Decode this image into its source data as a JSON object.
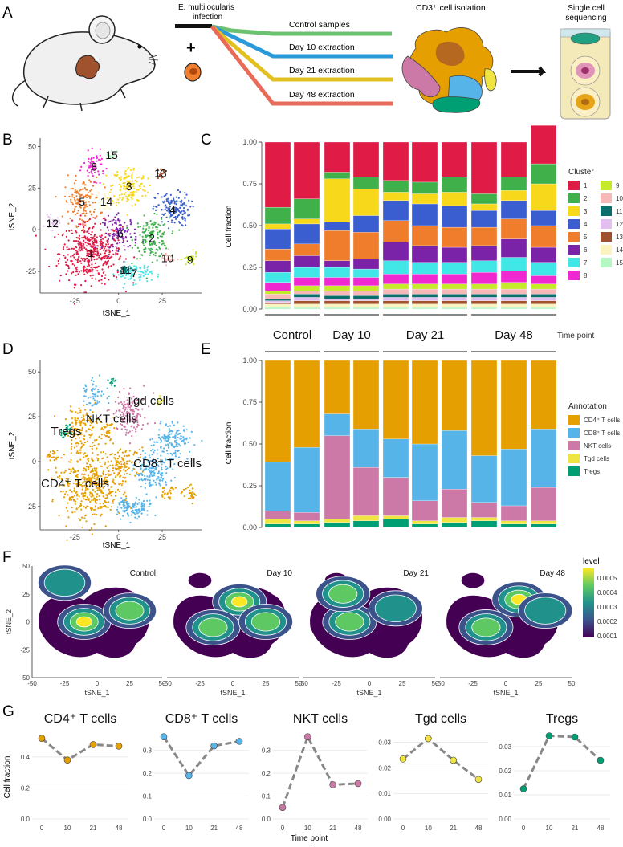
{
  "colors": {
    "c1": "#e01b46",
    "c2": "#3fb04a",
    "c3": "#f7d81a",
    "c4": "#3a5ed0",
    "c5": "#ef7d2c",
    "c6": "#7a23a8",
    "c7": "#41e6e6",
    "c8": "#f028d0",
    "c9": "#c4ea2a",
    "c10": "#f7b8b8",
    "c11": "#0b6e6a",
    "c12": "#e2bfef",
    "c13": "#a0522d",
    "c14": "#fbf3c0",
    "c15": "#b4f7c4",
    "cd4": "#e69f00",
    "cd8": "#56b4e9",
    "nkt": "#cc79a7",
    "tgd": "#f0e442",
    "treg": "#009e73"
  },
  "panel_letters": [
    "A",
    "B",
    "C",
    "D",
    "E",
    "F",
    "G"
  ],
  "panelA": {
    "infection_label": "E. multilocularis\ninfection",
    "plus": "+",
    "lanes": [
      "Control samples",
      "Day 10 extraction",
      "Day 21 extraction",
      "Day 48 extraction"
    ],
    "isolation_label": "CD3⁺ cell isolation",
    "sequencing_label": "Single cell\nsequencing"
  },
  "panelB": {
    "xlabel": "tSNE_1",
    "ylabel": "tSNE_2",
    "xticks": [
      "-25",
      "0",
      "25"
    ],
    "yticks": [
      "50",
      "25",
      "0",
      "-25"
    ],
    "clusters": [
      {
        "id": "1",
        "label": "1",
        "color": "c1",
        "x": -16,
        "y": -14,
        "sx": 9,
        "sy": 9,
        "n": 420
      },
      {
        "id": "2",
        "label": "2",
        "color": "c2",
        "x": 19,
        "y": -5,
        "sx": 5,
        "sy": 6,
        "n": 160
      },
      {
        "id": "3",
        "label": "3",
        "color": "c3",
        "x": 6,
        "y": 26,
        "sx": 5,
        "sy": 6,
        "n": 150
      },
      {
        "id": "4",
        "label": "4",
        "color": "c4",
        "x": 31,
        "y": 12,
        "sx": 5,
        "sy": 5,
        "n": 150
      },
      {
        "id": "5",
        "label": "5",
        "color": "c5",
        "x": -21,
        "y": 17,
        "sx": 5,
        "sy": 7,
        "n": 140
      },
      {
        "id": "6",
        "label": "6",
        "color": "c6",
        "x": 1,
        "y": -2,
        "sx": 5,
        "sy": 5,
        "n": 110
      },
      {
        "id": "7",
        "label": "7",
        "color": "c7",
        "x": 9,
        "y": -26,
        "sx": 5,
        "sy": 3,
        "n": 90
      },
      {
        "id": "8",
        "label": "8",
        "color": "c8",
        "x": -14,
        "y": 38,
        "sx": 3,
        "sy": 4,
        "n": 60
      },
      {
        "id": "9",
        "label": "9",
        "color": "c9",
        "x": 41,
        "y": -18,
        "sx": 2,
        "sy": 2,
        "n": 30
      },
      {
        "id": "10",
        "label": "10",
        "color": "c10",
        "x": 28,
        "y": -17,
        "sx": 2,
        "sy": 2,
        "n": 25
      },
      {
        "id": "11",
        "label": "11",
        "color": "c11",
        "x": 4,
        "y": -24,
        "sx": 2,
        "sy": 1.5,
        "n": 25
      },
      {
        "id": "12",
        "label": "12",
        "color": "c12",
        "x": -38,
        "y": 4,
        "sx": 2,
        "sy": 2,
        "n": 25
      },
      {
        "id": "13",
        "label": "13",
        "color": "c13",
        "x": 24,
        "y": 34,
        "sx": 1.5,
        "sy": 1.5,
        "n": 20
      },
      {
        "id": "14",
        "label": "14",
        "color": "c14",
        "x": -7,
        "y": 17,
        "sx": 3,
        "sy": 3,
        "n": 30
      },
      {
        "id": "15",
        "label": "15",
        "color": "c15",
        "x": -4,
        "y": 45,
        "sx": 1.5,
        "sy": 1.5,
        "n": 15
      }
    ]
  },
  "panelD": {
    "xlabel": "tSNE_1",
    "ylabel": "tSNE_2",
    "xticks": [
      "-25",
      "0",
      "25"
    ],
    "yticks": [
      "50",
      "25",
      "0",
      "-25"
    ],
    "labels": [
      {
        "text": "Tgd cells",
        "x": 18,
        "y": 34
      },
      {
        "text": "NKT cells",
        "x": -4,
        "y": 24
      },
      {
        "text": "Tregs",
        "x": -30,
        "y": 17
      },
      {
        "text": "CD8⁺ T cells",
        "x": 28,
        "y": -1
      },
      {
        "text": "CD4⁺ T cells",
        "x": -25,
        "y": -12
      }
    ]
  },
  "chart_data": [
    {
      "id": "C",
      "type": "bar",
      "stacked": true,
      "ylabel": "Cell fraction",
      "ylim": [
        0,
        1
      ],
      "yticks": [
        "1.00",
        "0.75",
        "0.50",
        "0.25",
        "0.00"
      ],
      "legend_title": "Cluster",
      "legend": [
        "1",
        "2",
        "3",
        "4",
        "5",
        "6",
        "7",
        "8",
        "9",
        "10",
        "11",
        "12",
        "13",
        "14",
        "15"
      ],
      "groups": [
        "Control",
        "Day 10",
        "Day 21",
        "Day 48"
      ],
      "group_sizes": [
        2,
        2,
        3,
        3
      ],
      "group_axis_title": "Time point",
      "series_order_bottom_to_top": [
        "15",
        "14",
        "13",
        "12",
        "11",
        "10",
        "9",
        "8",
        "7",
        "6",
        "5",
        "4",
        "3",
        "2",
        "1"
      ],
      "bars": [
        [
          0.01,
          0.02,
          0.01,
          0.01,
          0.01,
          0.03,
          0.02,
          0.05,
          0.06,
          0.07,
          0.07,
          0.12,
          0.03,
          0.1,
          0.39
        ],
        [
          0.01,
          0.02,
          0.02,
          0.02,
          0.02,
          0.02,
          0.03,
          0.05,
          0.06,
          0.07,
          0.07,
          0.12,
          0.03,
          0.12,
          0.34
        ],
        [
          0.01,
          0.02,
          0.02,
          0.01,
          0.02,
          0.03,
          0.03,
          0.05,
          0.06,
          0.04,
          0.18,
          0.05,
          0.26,
          0.04,
          0.18
        ],
        [
          0.01,
          0.02,
          0.02,
          0.01,
          0.02,
          0.03,
          0.03,
          0.05,
          0.05,
          0.06,
          0.16,
          0.1,
          0.16,
          0.07,
          0.21
        ],
        [
          0.01,
          0.02,
          0.02,
          0.02,
          0.02,
          0.03,
          0.03,
          0.06,
          0.08,
          0.11,
          0.13,
          0.12,
          0.05,
          0.07,
          0.23
        ],
        [
          0.01,
          0.02,
          0.02,
          0.02,
          0.02,
          0.03,
          0.03,
          0.06,
          0.07,
          0.1,
          0.12,
          0.13,
          0.06,
          0.07,
          0.24
        ],
        [
          0.01,
          0.02,
          0.02,
          0.02,
          0.02,
          0.03,
          0.03,
          0.06,
          0.07,
          0.09,
          0.12,
          0.13,
          0.08,
          0.09,
          0.21
        ],
        [
          0.01,
          0.02,
          0.02,
          0.02,
          0.02,
          0.03,
          0.03,
          0.07,
          0.07,
          0.09,
          0.11,
          0.1,
          0.04,
          0.06,
          0.31
        ],
        [
          0.01,
          0.02,
          0.02,
          0.02,
          0.02,
          0.03,
          0.04,
          0.07,
          0.08,
          0.11,
          0.12,
          0.11,
          0.06,
          0.08,
          0.21
        ],
        [
          0.01,
          0.02,
          0.02,
          0.02,
          0.02,
          0.03,
          0.03,
          0.05,
          0.08,
          0.09,
          0.13,
          0.09,
          0.16,
          0.12,
          0.23
        ]
      ]
    },
    {
      "id": "E",
      "type": "bar",
      "stacked": true,
      "ylabel": "Cell fraction",
      "ylim": [
        0,
        1
      ],
      "yticks": [
        "1.00",
        "0.75",
        "0.50",
        "0.25",
        "0.00"
      ],
      "legend_title": "Annotation",
      "legend": [
        "CD4⁺ T cells",
        "CD8⁺ T cells",
        "NKT cells",
        "Tgd cells",
        "Tregs"
      ],
      "legend_colors": [
        "cd4",
        "cd8",
        "nkt",
        "tgd",
        "treg"
      ],
      "series_order_bottom_to_top": [
        "Tregs",
        "Tgd cells",
        "NKT cells",
        "CD8⁺ T cells",
        "CD4⁺ T cells"
      ],
      "bars": [
        [
          0.02,
          0.03,
          0.05,
          0.29,
          0.61
        ],
        [
          0.02,
          0.02,
          0.05,
          0.39,
          0.52
        ],
        [
          0.03,
          0.02,
          0.5,
          0.13,
          0.32
        ],
        [
          0.04,
          0.03,
          0.29,
          0.23,
          0.41
        ],
        [
          0.05,
          0.02,
          0.23,
          0.23,
          0.47
        ],
        [
          0.02,
          0.02,
          0.12,
          0.34,
          0.5
        ],
        [
          0.03,
          0.03,
          0.17,
          0.35,
          0.42
        ],
        [
          0.04,
          0.02,
          0.09,
          0.28,
          0.57
        ],
        [
          0.02,
          0.02,
          0.09,
          0.34,
          0.53
        ],
        [
          0.02,
          0.02,
          0.2,
          0.35,
          0.41
        ]
      ]
    },
    {
      "id": "F",
      "type": "heatmap",
      "xlabel": "tSNE_1",
      "ylabel": "tSNE_2",
      "xticks": [
        "-50",
        "-25",
        "0",
        "25",
        "50"
      ],
      "yticks": [
        "50",
        "25",
        "0",
        "-25",
        "-50"
      ],
      "panels": [
        "Control",
        "Day 10",
        "Day 21",
        "Day 48"
      ],
      "legend_title": "level",
      "legend_ticks": [
        "0.0005",
        "0.0004",
        "0.0003",
        "0.0002",
        "0.0001"
      ]
    },
    {
      "id": "G",
      "type": "line",
      "x": [
        "0",
        "10",
        "21",
        "48"
      ],
      "xlabel": "Time point",
      "ylabel": "Cell fraction",
      "series": [
        {
          "name": "CD4⁺ T cells",
          "color": "cd4",
          "values": [
            0.52,
            0.38,
            0.48,
            0.47
          ],
          "ylim": [
            0,
            0.56
          ],
          "yticks": [
            "0.4",
            "0.2",
            "0.0"
          ],
          "ytick_values": [
            0.4,
            0.2,
            0.0
          ]
        },
        {
          "name": "CD8⁺ T cells",
          "color": "cd8",
          "values": [
            0.36,
            0.19,
            0.32,
            0.34
          ],
          "ylim": [
            0,
            0.38
          ],
          "yticks": [
            "0.3",
            "0.2",
            "0.1",
            "0.0"
          ],
          "ytick_values": [
            0.3,
            0.2,
            0.1,
            0.0
          ]
        },
        {
          "name": "NKT cells",
          "color": "nkt",
          "values": [
            0.05,
            0.36,
            0.15,
            0.155
          ],
          "ylim": [
            0,
            0.38
          ],
          "yticks": [
            "0.3",
            "0.2",
            "0.1",
            "0.0"
          ],
          "ytick_values": [
            0.3,
            0.2,
            0.1,
            0.0
          ]
        },
        {
          "name": "Tgd cells",
          "color": "tgd",
          "values": [
            0.0235,
            0.0315,
            0.023,
            0.0155
          ],
          "ylim": [
            0,
            0.034
          ],
          "yticks": [
            "0.03",
            "0.02",
            "0.01",
            "0.00"
          ],
          "ytick_values": [
            0.03,
            0.02,
            0.01,
            0.0
          ]
        },
        {
          "name": "Tregs",
          "color": "treg",
          "values": [
            0.0125,
            0.0345,
            0.034,
            0.0243
          ],
          "ylim": [
            0,
            0.036
          ],
          "yticks": [
            "0.03",
            "0.02",
            "0.01",
            "0.00"
          ],
          "ytick_values": [
            0.03,
            0.02,
            0.01,
            0.0
          ]
        }
      ]
    }
  ]
}
